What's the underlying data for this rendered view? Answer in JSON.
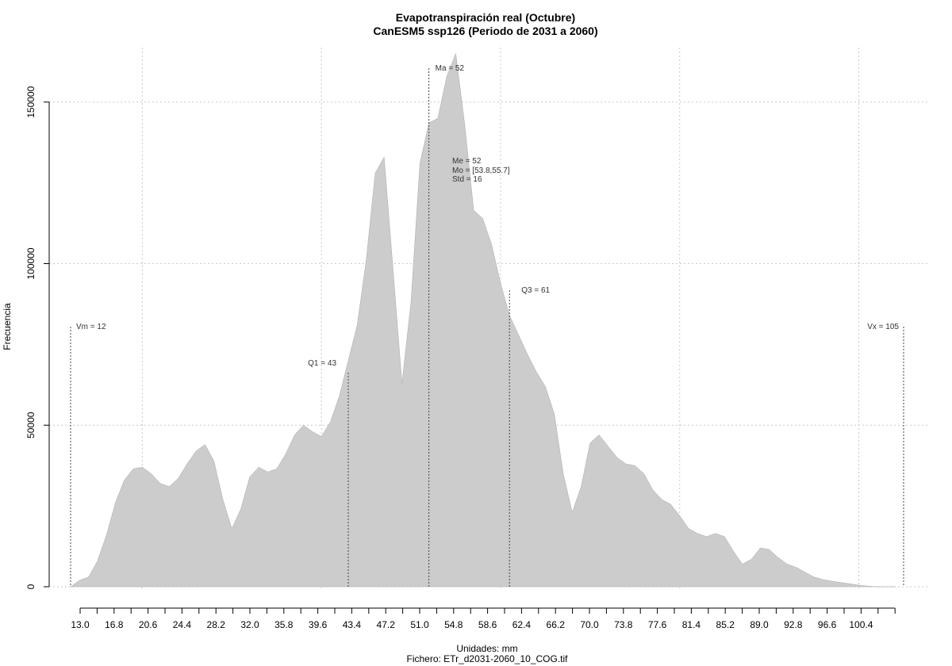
{
  "chart_data": {
    "type": "area",
    "title": "Evapotranspiración real (Octubre)",
    "subtitle": "CanESM5 ssp126 (Periodo de 2031 a 2060)",
    "xlabel": "Unidades: mm",
    "ylabel": "Frecuencia",
    "footer": "Fichero: ETr_d2031-2060_10_COG.tif",
    "xlim": [
      12,
      105
    ],
    "ylim": [
      0,
      160000
    ],
    "x_ticks": [
      13.0,
      14.9,
      16.8,
      18.7,
      20.6,
      22.5,
      24.4,
      26.3,
      28.2,
      30.1,
      32.0,
      33.9,
      35.8,
      37.7,
      39.6,
      41.5,
      43.4,
      45.3,
      47.2,
      49.1,
      51.0,
      52.9,
      54.8,
      56.7,
      58.6,
      60.5,
      62.4,
      64.3,
      66.2,
      68.1,
      70.0,
      71.9,
      73.8,
      75.7,
      77.6,
      79.5,
      81.4,
      83.3,
      85.2,
      87.1,
      89.0,
      90.9,
      92.8,
      94.7,
      96.6,
      98.5,
      100.4,
      102.3
    ],
    "x_tick_labels": [
      "13.0",
      "16.8",
      "20.6",
      "24.4",
      "28.2",
      "32.0",
      "35.8",
      "39.6",
      "43.4",
      "47.2",
      "51.0",
      "54.8",
      "58.6",
      "62.4",
      "66.2",
      "70.0",
      "73.8",
      "77.6",
      "81.4",
      "85.2",
      "89.0",
      "92.8",
      "96.6",
      "100.4"
    ],
    "y_ticks": [
      0,
      50000,
      100000,
      150000
    ],
    "y_tick_labels": [
      "0",
      "50000",
      "100000",
      "150000"
    ],
    "x_grid": [
      20,
      40,
      60,
      80,
      100
    ],
    "grid": true,
    "fill_color": "#cccccc",
    "x": [
      12,
      13,
      14,
      15,
      16,
      17,
      18,
      19,
      20,
      21,
      22,
      23,
      24,
      25,
      26,
      27,
      28,
      29,
      30,
      31,
      32,
      33,
      34,
      35,
      36,
      37,
      38,
      39,
      40,
      41,
      42,
      43,
      44,
      45,
      46,
      47,
      48,
      49,
      50,
      51,
      52,
      53,
      54,
      55,
      56,
      57,
      58,
      59,
      60,
      61,
      62,
      63,
      64,
      65,
      66,
      67,
      68,
      69,
      70,
      71,
      72,
      73,
      74,
      75,
      76,
      77,
      78,
      79,
      80,
      81,
      82,
      83,
      84,
      85,
      86,
      87,
      88,
      89,
      90,
      91,
      92,
      93,
      94,
      95,
      96,
      97,
      98,
      99,
      100,
      101,
      102,
      103,
      104
    ],
    "y": [
      0,
      2000,
      3000,
      8000,
      16000,
      26000,
      33000,
      36500,
      37000,
      35000,
      32000,
      31000,
      33500,
      38000,
      42000,
      44000,
      39000,
      27000,
      18000,
      24000,
      34000,
      37000,
      35500,
      36500,
      41000,
      47000,
      50000,
      48000,
      46500,
      51000,
      59000,
      70000,
      81000,
      101000,
      128000,
      133000,
      98000,
      63000,
      88000,
      131000,
      143500,
      145000,
      158000,
      165000,
      143000,
      116500,
      114000,
      106000,
      94000,
      84000,
      78000,
      72000,
      66500,
      62000,
      53500,
      35000,
      23000,
      31000,
      44500,
      47000,
      43500,
      40000,
      38000,
      37500,
      35000,
      30000,
      27000,
      25500,
      22000,
      18000,
      16500,
      15500,
      16500,
      15500,
      11000,
      7000,
      8500,
      12000,
      11500,
      9000,
      7000,
      6000,
      4500,
      3000,
      2200,
      1700,
      1300,
      900,
      500,
      200,
      0,
      0,
      0
    ],
    "annotations": {
      "vm": {
        "label": "Vm = 12",
        "x": 12
      },
      "q1": {
        "label": "Q1 = 43",
        "x": 43
      },
      "ma": {
        "label": "Ma = 52",
        "x": 52
      },
      "me": {
        "label": "Me = 52"
      },
      "mo": {
        "label": "Mo = [53.8,55.7]"
      },
      "std": {
        "label": "Std = 16"
      },
      "q3": {
        "label": "Q3 = 61",
        "x": 61
      },
      "vx": {
        "label": "Vx = 105",
        "x": 105
      }
    }
  }
}
